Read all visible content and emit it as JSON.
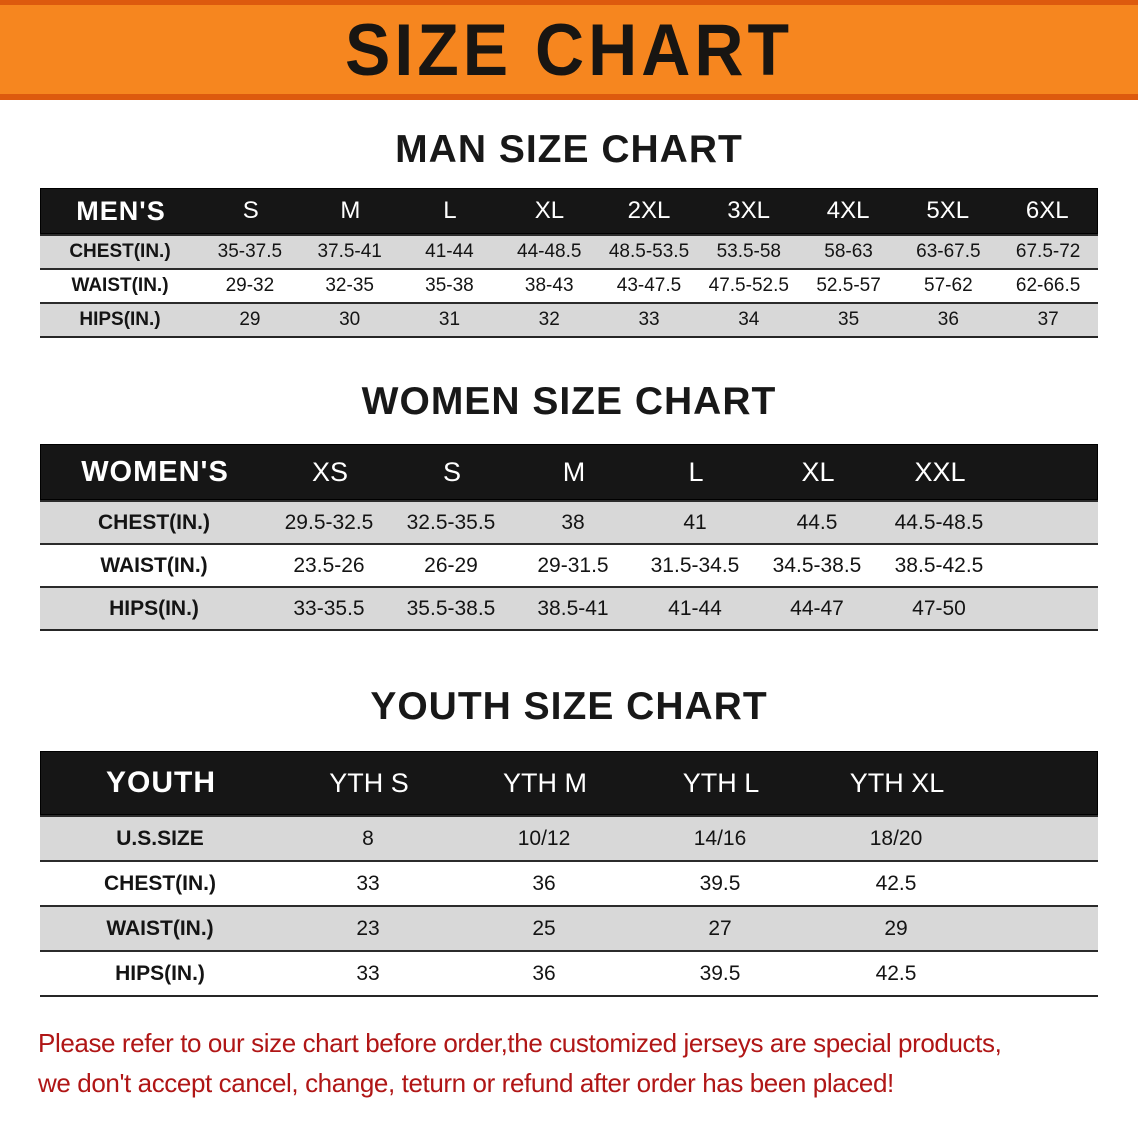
{
  "banner": {
    "title": "SIZE CHART"
  },
  "colors": {
    "banner_orange": "#f6861f",
    "banner_edge": "#dd5a0e",
    "header_black": "#161616",
    "row_gray": "#d8d8d8",
    "footer_red": "#b01616"
  },
  "sections": [
    {
      "heading": "MAN SIZE CHART",
      "header_label": "MEN'S",
      "columns": [
        "S",
        "M",
        "L",
        "XL",
        "2XL",
        "3XL",
        "4XL",
        "5XL",
        "6XL"
      ],
      "rows": [
        {
          "label": "CHEST(IN.)",
          "values": [
            "35-37.5",
            "37.5-41",
            "41-44",
            "44-48.5",
            "48.5-53.5",
            "53.5-58",
            "58-63",
            "63-67.5",
            "67.5-72"
          ]
        },
        {
          "label": "WAIST(IN.)",
          "values": [
            "29-32",
            "32-35",
            "35-38",
            "38-43",
            "43-47.5",
            "47.5-52.5",
            "52.5-57",
            "57-62",
            "62-66.5"
          ]
        },
        {
          "label": "HIPS(IN.)",
          "values": [
            "29",
            "30",
            "31",
            "32",
            "33",
            "34",
            "35",
            "36",
            "37"
          ]
        }
      ]
    },
    {
      "heading": "WOMEN SIZE CHART",
      "header_label": "WOMEN'S",
      "columns": [
        "XS",
        "S",
        "M",
        "L",
        "XL",
        "XXL"
      ],
      "rows": [
        {
          "label": "CHEST(IN.)",
          "values": [
            "29.5-32.5",
            "32.5-35.5",
            "38",
            "41",
            "44.5",
            "44.5-48.5"
          ]
        },
        {
          "label": "WAIST(IN.)",
          "values": [
            "23.5-26",
            "26-29",
            "29-31.5",
            "31.5-34.5",
            "34.5-38.5",
            "38.5-42.5"
          ]
        },
        {
          "label": "HIPS(IN.)",
          "values": [
            "33-35.5",
            "35.5-38.5",
            "38.5-41",
            "41-44",
            "44-47",
            "47-50"
          ]
        }
      ]
    },
    {
      "heading": "YOUTH SIZE CHART",
      "header_label": "YOUTH",
      "columns": [
        "YTH S",
        "YTH M",
        "YTH L",
        "YTH XL"
      ],
      "rows": [
        {
          "label": "U.S.SIZE",
          "values": [
            "8",
            "10/12",
            "14/16",
            "18/20"
          ]
        },
        {
          "label": "CHEST(IN.)",
          "values": [
            "33",
            "36",
            "39.5",
            "42.5"
          ]
        },
        {
          "label": "WAIST(IN.)",
          "values": [
            "23",
            "25",
            "27",
            "29"
          ]
        },
        {
          "label": "HIPS(IN.)",
          "values": [
            "33",
            "36",
            "39.5",
            "42.5"
          ]
        }
      ]
    }
  ],
  "footer": {
    "line1": "Please refer to our size chart before order,the customized jerseys are special products,",
    "line2": "we don't accept cancel, change, teturn or refund after order has been placed!"
  }
}
